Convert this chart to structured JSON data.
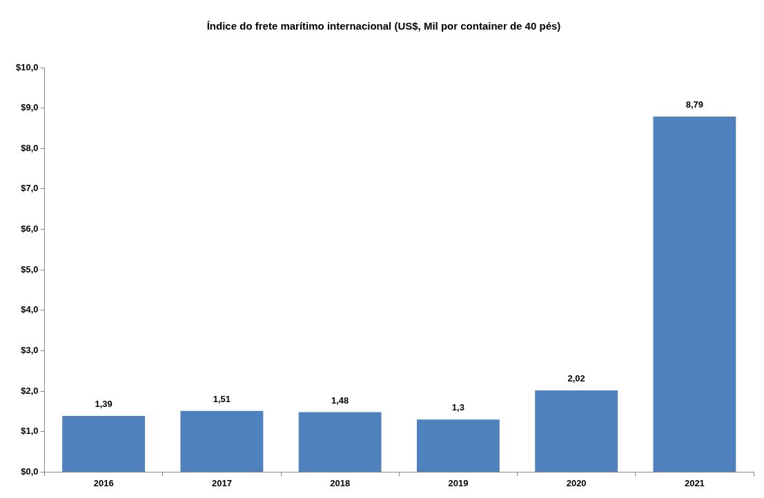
{
  "chart_data": {
    "type": "bar",
    "title": "Índice do frete marítimo internacional (US$, Mil por container de 40 pés)",
    "categories": [
      "2016",
      "2017",
      "2018",
      "2019",
      "2020",
      "2021"
    ],
    "values": [
      1.39,
      1.51,
      1.48,
      1.3,
      2.02,
      8.79
    ],
    "value_labels": [
      "1,39",
      "1,51",
      "1,48",
      "1,3",
      "2,02",
      "8,79"
    ],
    "color": "#4f81bd",
    "ylim": [
      0,
      10
    ],
    "yticks": [
      {
        "value": 0,
        "label": "$0,0"
      },
      {
        "value": 1,
        "label": "$1,0"
      },
      {
        "value": 2,
        "label": "$2,0"
      },
      {
        "value": 3,
        "label": "$3,0"
      },
      {
        "value": 4,
        "label": "$4,0"
      },
      {
        "value": 5,
        "label": "$5,0"
      },
      {
        "value": 6,
        "label": "$6,0"
      },
      {
        "value": 7,
        "label": "$7,0"
      },
      {
        "value": 8,
        "label": "$8,0"
      },
      {
        "value": 9,
        "label": "$9,0"
      },
      {
        "value": 10,
        "label": "$10,0"
      }
    ],
    "legend": false
  }
}
